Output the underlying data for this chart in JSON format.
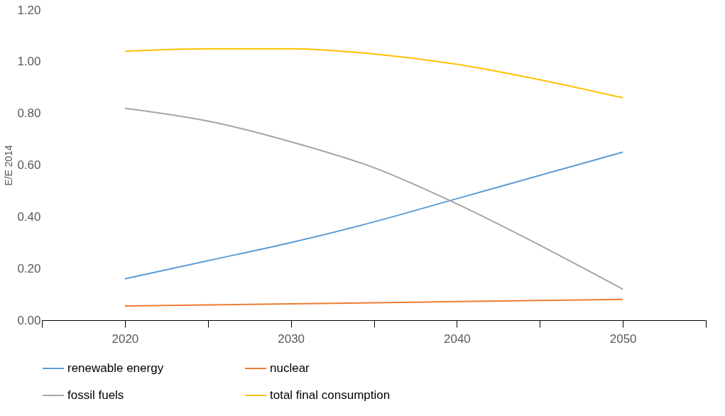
{
  "chart_data": {
    "type": "line",
    "ylabel": "E/E 2014",
    "xlim": [
      2015,
      2055
    ],
    "xticks": [
      {
        "value": 2015,
        "label": null
      },
      2020,
      {
        "value": 2025,
        "label": null
      },
      2030,
      {
        "value": 2035,
        "label": null
      },
      2040,
      {
        "value": 2045,
        "label": null
      },
      2050,
      {
        "value": 2055,
        "label": null
      }
    ],
    "ylim": [
      0,
      1.2
    ],
    "yticks": [
      {
        "value": 0,
        "label": "0.00"
      },
      {
        "value": 0.2,
        "label": "0.20"
      },
      {
        "value": 0.4,
        "label": "0.40"
      },
      {
        "value": 0.6,
        "label": "0.60"
      },
      {
        "value": 0.8,
        "label": "0.80"
      },
      {
        "value": 1.0,
        "label": "1.00"
      },
      {
        "value": 1.2,
        "label": "1.20"
      }
    ],
    "x": [
      2020,
      2025,
      2030,
      2035,
      2040,
      2045,
      2050
    ],
    "grid": false,
    "legend": "bottom",
    "marker": "none",
    "line_style": "solid",
    "series": [
      {
        "name": "renewable energy",
        "color": "#5b9bd5",
        "values": [
          0.16,
          0.23,
          0.3,
          0.38,
          0.47,
          0.56,
          0.65
        ]
      },
      {
        "name": "nuclear",
        "color": "#ed7d31",
        "values": [
          0.055,
          0.059,
          0.063,
          0.067,
          0.072,
          0.076,
          0.08
        ]
      },
      {
        "name": "fossil fuels",
        "color": "#a5a5a5",
        "values": [
          0.82,
          0.77,
          0.69,
          0.59,
          0.45,
          0.29,
          0.12
        ]
      },
      {
        "name": "total final consumption",
        "color": "#ffc000",
        "values": [
          1.04,
          1.05,
          1.05,
          1.03,
          0.99,
          0.93,
          0.86
        ]
      }
    ]
  }
}
